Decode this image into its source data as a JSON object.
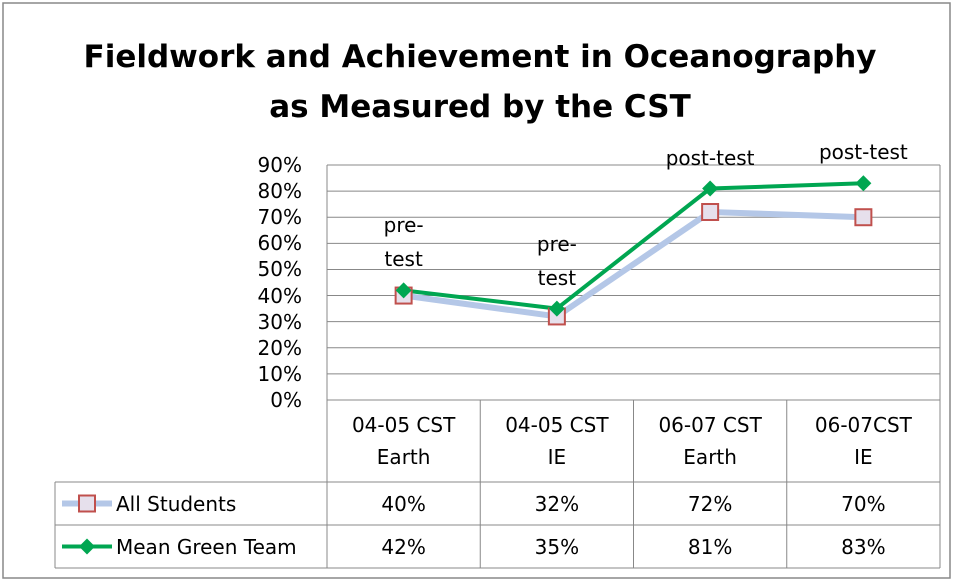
{
  "chart_data": {
    "type": "line",
    "title": "Fieldwork and Achievement in Oceanography as Measured by the CST",
    "categories": [
      "04-05 CST Earth",
      "04-05 CST IE",
      "06-07 CST Earth",
      "06-07CST IE"
    ],
    "series": [
      {
        "name": "All Students",
        "color": "#b4c7e7",
        "marker_color": "#c0504d",
        "values": [
          40,
          32,
          72,
          70
        ],
        "value_labels": [
          "40%",
          "32%",
          "72%",
          "70%"
        ]
      },
      {
        "name": "Mean Green Team",
        "color": "#00a651",
        "marker_color": "#00a651",
        "values": [
          42,
          35,
          81,
          83
        ],
        "value_labels": [
          "42%",
          "35%",
          "81%",
          "83%"
        ]
      }
    ],
    "annotations": [
      "pre-test",
      "pre-test",
      "post-test",
      "post-test"
    ],
    "ylim": [
      0,
      90
    ],
    "yticks": [
      {
        "value": 0,
        "label": "0%"
      },
      {
        "value": 10,
        "label": "10%"
      },
      {
        "value": 20,
        "label": "20%"
      },
      {
        "value": 30,
        "label": "30%"
      },
      {
        "value": 40,
        "label": "40%"
      },
      {
        "value": 50,
        "label": "50%"
      },
      {
        "value": 60,
        "label": "60%"
      },
      {
        "value": 70,
        "label": "70%"
      },
      {
        "value": 80,
        "label": "80%"
      },
      {
        "value": 90,
        "label": "90%"
      }
    ],
    "grid": true
  }
}
